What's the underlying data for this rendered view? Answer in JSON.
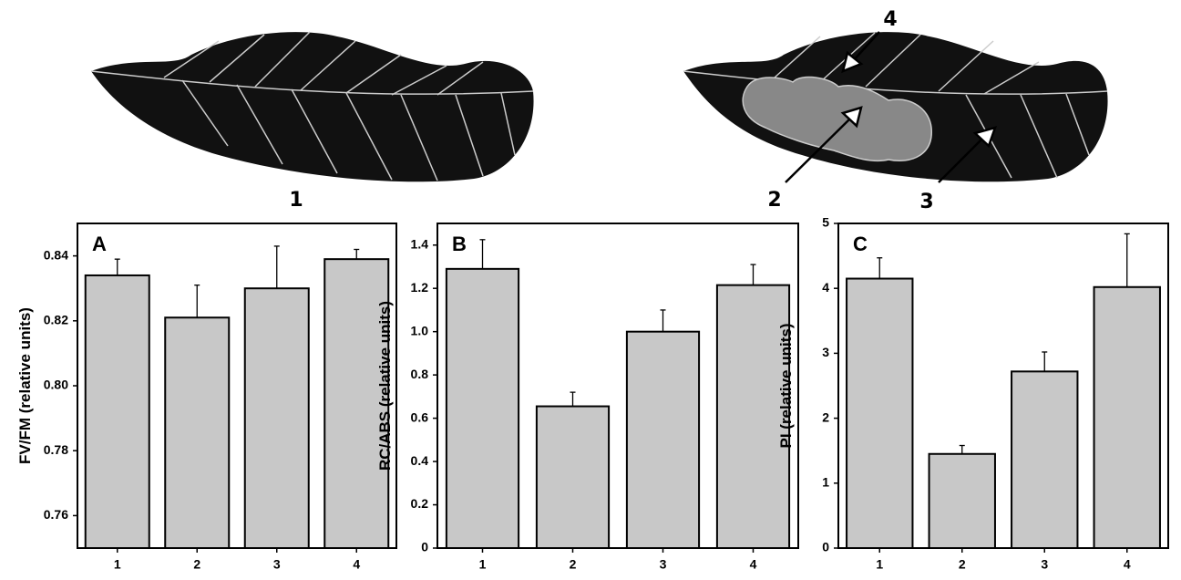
{
  "illustration": {
    "leaf_labels": [
      "1",
      "2",
      "3",
      "4"
    ]
  },
  "chart_data": [
    {
      "type": "bar",
      "panel": "A",
      "ylabel": "FV/FM (relative units)",
      "categories": [
        "1",
        "2",
        "3",
        "4"
      ],
      "values": [
        0.834,
        0.821,
        0.83,
        0.839
      ],
      "errors": [
        0.005,
        0.01,
        0.013,
        0.003
      ],
      "color": "#c8c8c8",
      "ylim": [
        0.75,
        0.85
      ],
      "yticks": [
        0.76,
        0.78,
        {
          "value": 0.8,
          "label": "0.80"
        },
        0.82,
        0.84
      ]
    },
    {
      "type": "bar",
      "panel": "B",
      "ylabel": "RC/ABS (relative units)",
      "categories": [
        "1",
        "2",
        "3",
        "4"
      ],
      "values": [
        1.29,
        0.655,
        1.0,
        1.215
      ],
      "errors": [
        0.135,
        0.065,
        0.1,
        0.095
      ],
      "color": "#c8c8c8",
      "ylim": [
        0,
        1.5
      ],
      "yticks": [
        0,
        0.2,
        0.4,
        0.6,
        0.8,
        {
          "value": 1,
          "label": "1.0"
        },
        1.2,
        1.4
      ]
    },
    {
      "type": "bar",
      "panel": "C",
      "ylabel": "PI (relative units)",
      "categories": [
        "1",
        "2",
        "3",
        "4"
      ],
      "values": [
        4.15,
        1.45,
        2.72,
        4.02
      ],
      "errors": [
        0.32,
        0.13,
        0.3,
        0.82
      ],
      "color": "#c8c8c8",
      "ylim": [
        0,
        5
      ],
      "yticks": [
        0,
        1,
        2,
        3,
        4,
        5
      ]
    }
  ]
}
